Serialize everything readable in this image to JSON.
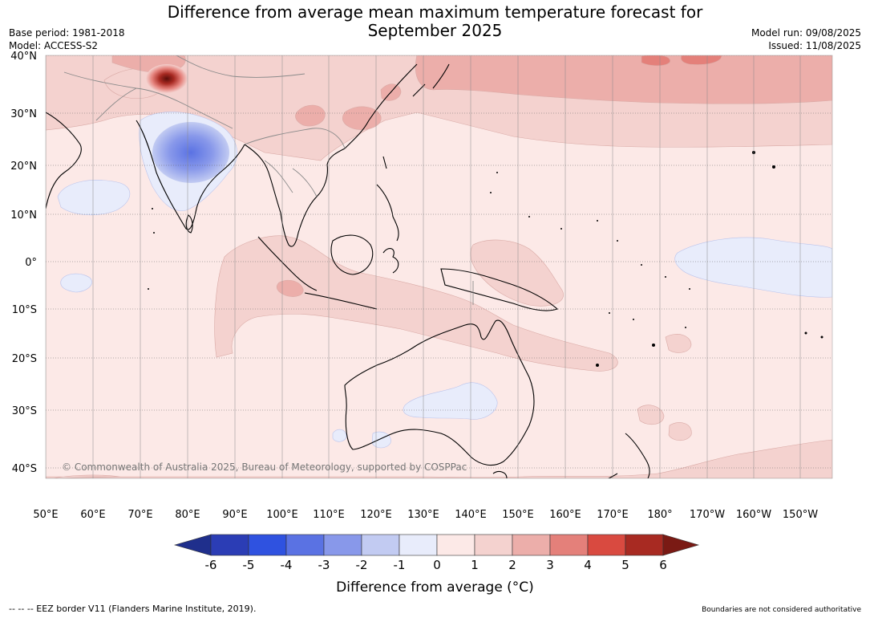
{
  "header": {
    "title_line1": "Difference from average mean maximum temperature forecast for",
    "title_line2": "September 2025",
    "base_period": "Base period: 1981-2018",
    "model": "Model: ACCESS-S2",
    "model_run": "Model run: 09/08/2025",
    "issued": "Issued: 11/08/2025"
  },
  "map": {
    "lat_labels": [
      "40°N",
      "30°N",
      "20°N",
      "10°N",
      "0°",
      "10°S",
      "20°S",
      "30°S",
      "40°S"
    ],
    "lon_labels": [
      "50°E",
      "60°E",
      "70°E",
      "80°E",
      "90°E",
      "100°E",
      "110°E",
      "120°E",
      "130°E",
      "140°E",
      "150°E",
      "160°E",
      "170°E",
      "180°",
      "170°W",
      "160°W",
      "150°W"
    ],
    "copyright": "© Commonwealth of Australia 2025, Bureau of Meteorology, supported by COSPPac",
    "ocean_color": "#fce9e7",
    "land_outline_color": "#000000"
  },
  "colorbar": {
    "ticks": [
      "-6",
      "-5",
      "-4",
      "-3",
      "-2",
      "-1",
      "0",
      "1",
      "2",
      "3",
      "4",
      "5",
      "6"
    ],
    "colors": [
      "#1f2f8c",
      "#2b3db5",
      "#2f52e0",
      "#5a72e3",
      "#8898ea",
      "#c2cbf2",
      "#e8ecfb",
      "#fce9e7",
      "#f4d2cf",
      "#ecaeaa",
      "#e4807a",
      "#d94a40",
      "#a82a22",
      "#7a1a14"
    ],
    "label": "Difference from average (°C)"
  },
  "footer": {
    "eez": "--  --  -- EEZ border V11 (Flanders Marine Institute, 2019).",
    "boundaries": "Boundaries are not considered authoritative"
  }
}
